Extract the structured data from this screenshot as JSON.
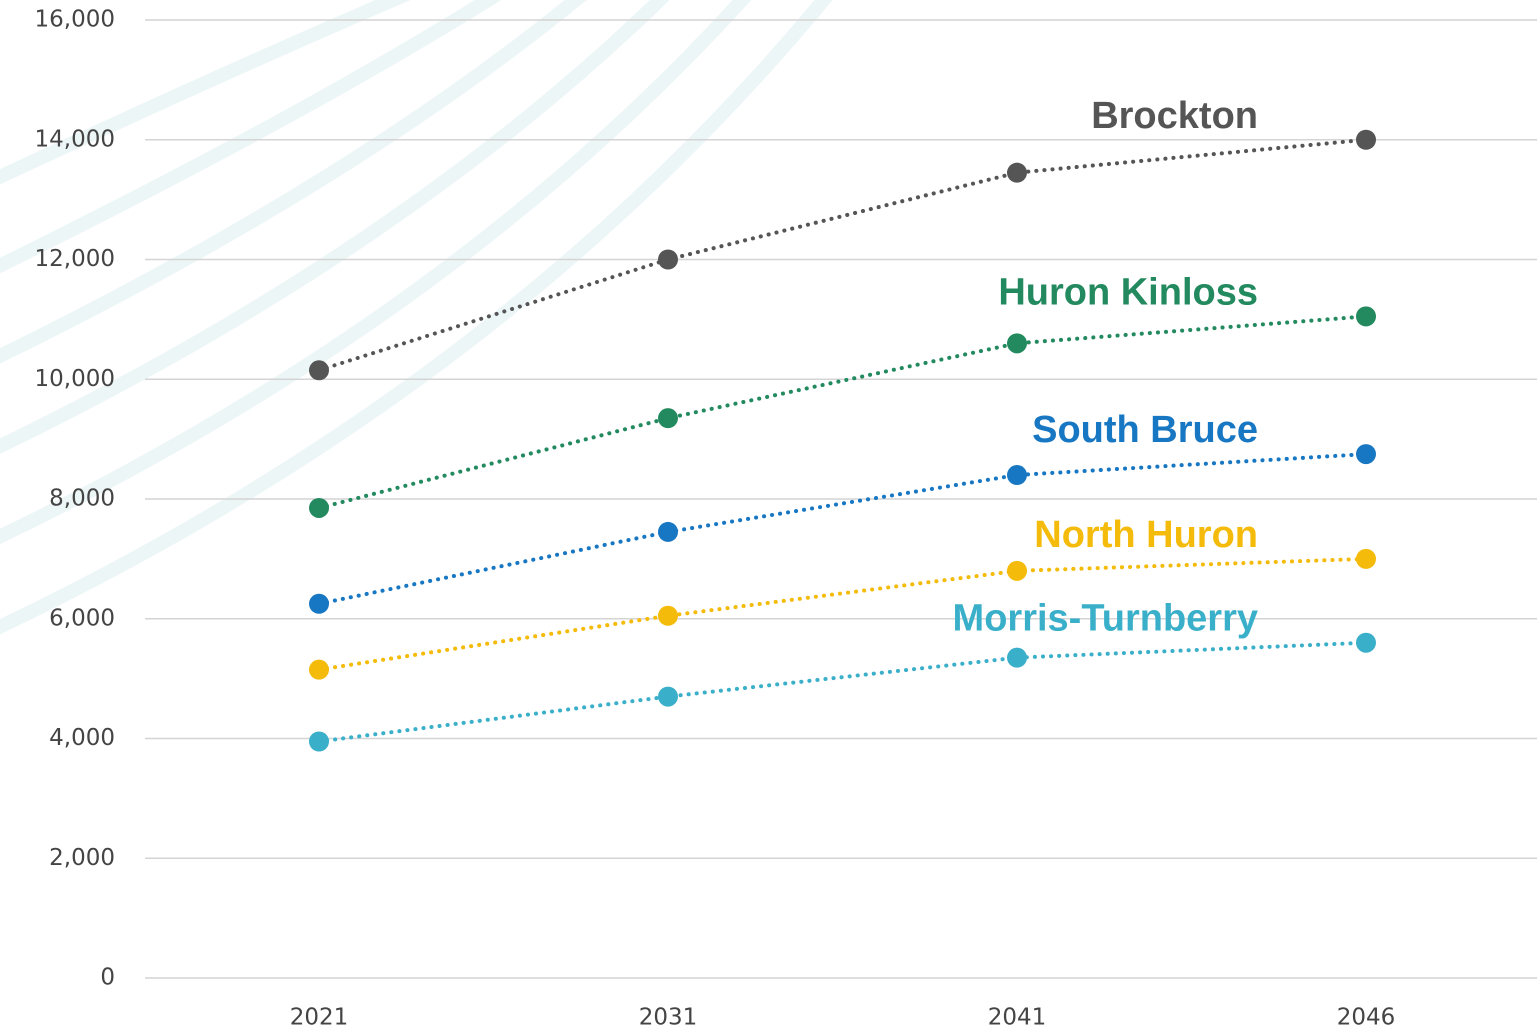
{
  "chart_data": {
    "type": "line",
    "categories": [
      "2021",
      "2031",
      "2041",
      "2046"
    ],
    "series": [
      {
        "name": "Brockton",
        "color": "#555555",
        "values": [
          10150,
          12000,
          13450,
          14000
        ]
      },
      {
        "name": "Huron Kinloss",
        "color": "#238a5f",
        "values": [
          7850,
          9350,
          10600,
          11050
        ]
      },
      {
        "name": "South Bruce",
        "color": "#1877c2",
        "values": [
          6250,
          7450,
          8400,
          8750
        ]
      },
      {
        "name": "North Huron",
        "color": "#f5bb0a",
        "values": [
          5150,
          6050,
          6800,
          7000
        ]
      },
      {
        "name": "Morris-Turnberry",
        "color": "#3aafc9",
        "values": [
          3950,
          4700,
          5350,
          5600
        ]
      }
    ],
    "ylim": [
      0,
      16000
    ],
    "yticks": [
      0,
      {
        "value": 2000,
        "label": "2,000"
      },
      {
        "value": 4000,
        "label": "4,000"
      },
      {
        "value": 6000,
        "label": "6,000"
      },
      {
        "value": 8000,
        "label": "8,000"
      },
      {
        "value": 10000,
        "label": "10,000"
      },
      {
        "value": 12000,
        "label": "12,000"
      },
      {
        "value": 14000,
        "label": "14,000"
      },
      {
        "value": 16000,
        "label": "16,000"
      }
    ],
    "grid": true
  }
}
